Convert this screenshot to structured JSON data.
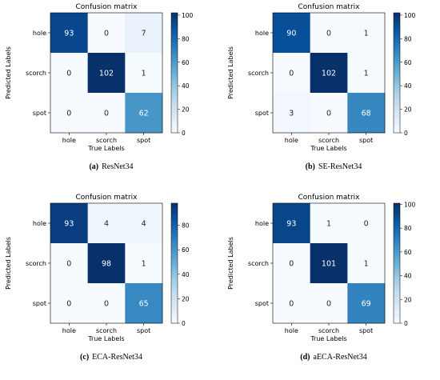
{
  "chart_data": [
    {
      "type": "heatmap",
      "title": "Confusion matrix",
      "xlabel": "True Labels",
      "ylabel": "Predicted Labels",
      "x_categories": [
        "hole",
        "scorch",
        "spot"
      ],
      "y_categories": [
        "hole",
        "scorch",
        "spot"
      ],
      "values": [
        [
          93,
          0,
          7
        ],
        [
          0,
          102,
          1
        ],
        [
          0,
          0,
          62
        ]
      ],
      "vmin": 0,
      "vmax": 102,
      "colorbar_ticks": [
        0,
        20,
        40,
        60,
        80,
        100
      ],
      "caption_letter": "(a)",
      "caption_text": "ResNet34"
    },
    {
      "type": "heatmap",
      "title": "Confusion matrix",
      "xlabel": "True Labels",
      "ylabel": "Predicted Labels",
      "x_categories": [
        "hole",
        "scorch",
        "spot"
      ],
      "y_categories": [
        "hole",
        "scorch",
        "spot"
      ],
      "values": [
        [
          90,
          0,
          1
        ],
        [
          0,
          102,
          1
        ],
        [
          3,
          0,
          68
        ]
      ],
      "vmin": 0,
      "vmax": 102,
      "colorbar_ticks": [
        0,
        20,
        40,
        60,
        80,
        100
      ],
      "caption_letter": "(b)",
      "caption_text": "SE-ResNet34"
    },
    {
      "type": "heatmap",
      "title": "Confusion matrix",
      "xlabel": "True Labels",
      "ylabel": "Predicted Labels",
      "x_categories": [
        "hole",
        "scorch",
        "spot"
      ],
      "y_categories": [
        "hole",
        "scorch",
        "spot"
      ],
      "values": [
        [
          93,
          4,
          4
        ],
        [
          0,
          98,
          1
        ],
        [
          0,
          0,
          65
        ]
      ],
      "vmin": 0,
      "vmax": 98,
      "colorbar_ticks": [
        0,
        20,
        40,
        60,
        80
      ],
      "caption_letter": "(c)",
      "caption_text": "ECA-ResNet34"
    },
    {
      "type": "heatmap",
      "title": "Confusion matrix",
      "xlabel": "True Labels",
      "ylabel": "Predicted Labels",
      "x_categories": [
        "hole",
        "scorch",
        "spot"
      ],
      "y_categories": [
        "hole",
        "scorch",
        "spot"
      ],
      "values": [
        [
          93,
          1,
          0
        ],
        [
          0,
          101,
          1
        ],
        [
          0,
          0,
          69
        ]
      ],
      "vmin": 0,
      "vmax": 101,
      "colorbar_ticks": [
        0,
        20,
        40,
        60,
        80,
        100
      ],
      "caption_letter": "(d)",
      "caption_text": "aECA-ResNet34"
    }
  ],
  "colors": {
    "cmap": [
      "#f7fbff",
      "#deebf7",
      "#c6dbef",
      "#9ecae1",
      "#6baed6",
      "#4292c6",
      "#2171b5",
      "#08519c",
      "#08306b"
    ],
    "dark_text": "#262626",
    "light_text": "#ffffff"
  }
}
